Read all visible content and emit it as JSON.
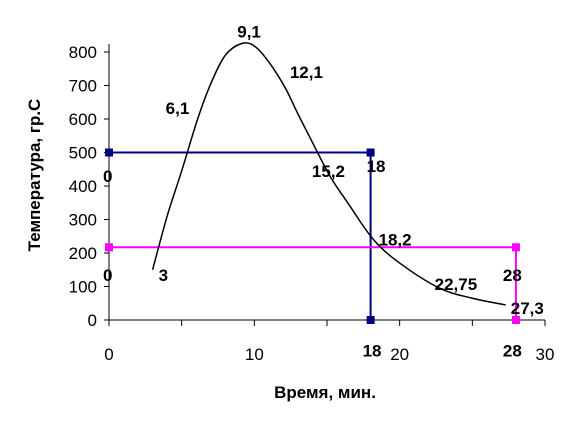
{
  "chart_data": {
    "type": "line",
    "xlabel": "Время, мин.",
    "ylabel": "Температура, гр.С",
    "xlim": [
      0,
      30
    ],
    "ylim": [
      0,
      800
    ],
    "xticks": [
      0,
      10,
      20,
      30
    ],
    "yticks": [
      0,
      100,
      200,
      300,
      400,
      500,
      600,
      700,
      800
    ],
    "grid": false,
    "legend": "none",
    "curve": {
      "color": "#000000",
      "points": [
        [
          3,
          150
        ],
        [
          4,
          310
        ],
        [
          5,
          445
        ],
        [
          6.1,
          600
        ],
        [
          7,
          705
        ],
        [
          8,
          790
        ],
        [
          9.1,
          825
        ],
        [
          10,
          818
        ],
        [
          11,
          770
        ],
        [
          12.1,
          695
        ],
        [
          13,
          615
        ],
        [
          14,
          530
        ],
        [
          15.2,
          430
        ],
        [
          16.5,
          345
        ],
        [
          18.2,
          240
        ],
        [
          20,
          170
        ],
        [
          22.75,
          95
        ],
        [
          25,
          65
        ],
        [
          27.3,
          45
        ]
      ]
    },
    "series": [
      {
        "color": "#000080",
        "points": [
          [
            0,
            500
          ],
          [
            18,
            500
          ],
          [
            18,
            0
          ]
        ]
      },
      {
        "color": "#ff00ff",
        "points": [
          [
            0,
            217
          ],
          [
            28,
            217
          ],
          [
            28,
            0
          ]
        ]
      }
    ],
    "annotations": [
      {
        "text": "3",
        "x": 3,
        "y": 150
      },
      {
        "text": "6,1",
        "x": 6.1,
        "y": 600
      },
      {
        "text": "9,1",
        "x": 9.1,
        "y": 825
      },
      {
        "text": "12,1",
        "x": 12.1,
        "y": 695
      },
      {
        "text": "15,2",
        "x": 15.2,
        "y": 430
      },
      {
        "text": "18",
        "x": 18,
        "y": 430
      },
      {
        "text": "18,2",
        "x": 18.2,
        "y": 240
      },
      {
        "text": "22,75",
        "x": 22.75,
        "y": 95
      },
      {
        "text": "27,3",
        "x": 27.3,
        "y": 45
      },
      {
        "text": "0",
        "x": 0,
        "y": 430
      },
      {
        "text": "0",
        "x": 0,
        "y": 150
      },
      {
        "text": "28",
        "x": 28,
        "y": 150
      },
      {
        "text": "18",
        "x": 18,
        "y": -85
      },
      {
        "text": "28",
        "x": 28,
        "y": -85
      }
    ]
  }
}
